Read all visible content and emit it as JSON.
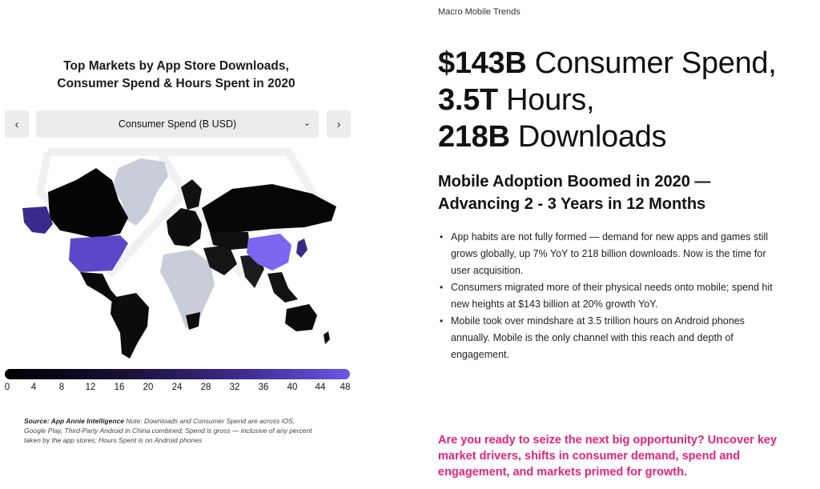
{
  "map_panel": {
    "title_line1": "Top Markets by App Store Downloads,",
    "title_line2": "Consumer Spend & Hours Spent in 2020",
    "prev_icon": "chevron-left-icon",
    "next_icon": "chevron-right-icon",
    "selector": {
      "selected": "Consumer Spend (B USD)",
      "icon": "chevron-down-icon"
    },
    "scale": {
      "labels": [
        "0",
        "4",
        "8",
        "12",
        "16",
        "20",
        "24",
        "28",
        "32",
        "36",
        "40",
        "44",
        "48"
      ],
      "colors": {
        "low": "#000000",
        "high": "#6b57e8",
        "no_data": "#c9ccd9"
      }
    },
    "source_label": "Source: App Annie Intelligence",
    "source_note": "Note: Downloads and Consumer Spend are across iOS, Google Play, Third-Party Android in China combined; Spend is gross — inclusive of any percent taken by the app stores; Hours Spent is on Android phones"
  },
  "content": {
    "eyebrow": "Macro Mobile Trends",
    "headline": {
      "spend_value": "$143B",
      "spend_text": " Consumer Spend, ",
      "hours_value": "3.5T",
      "hours_text": " Hours,",
      "downloads_value": "218B",
      "downloads_text": " Downloads"
    },
    "subhead_line1": "Mobile Adoption Boomed in 2020 —",
    "subhead_line2": "Advancing 2 - 3 Years in 12 Months",
    "bullets": [
      "App habits are not fully formed — demand for new apps and games still grows globally, up 7% YoY to 218 billion downloads. Now is the time for user acquisition.",
      "Consumers migrated more of their physical needs onto mobile; spend hit new heights at $143 billion at 20% growth YoY.",
      "Mobile took over mindshare at 3.5 trillion hours on Android phones annually. Mobile is the only channel with this reach and depth of engagement."
    ],
    "cta": "Are you ready to seize the next big opportunity? Uncover key market drivers, shifts in consumer demand, spend and engagement, and markets primed for growth."
  }
}
